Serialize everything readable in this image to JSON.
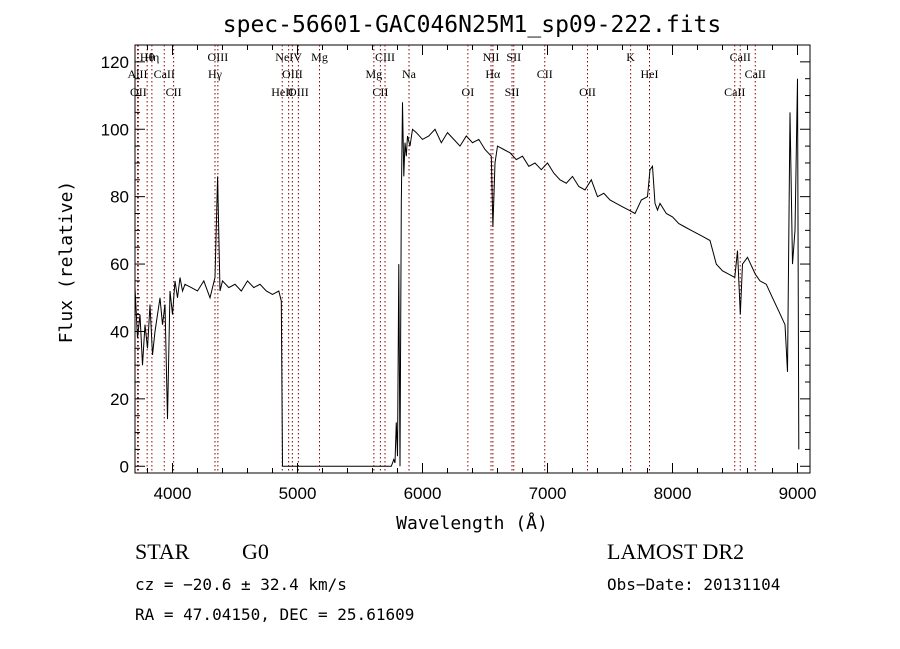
{
  "chart_data": {
    "type": "line",
    "title": "spec-56601-GAC046N25M1_sp09-222.fits",
    "xlabel": "Wavelength (Å)",
    "ylabel": "Flux (relative)",
    "xlim": [
      3700,
      9100
    ],
    "ylim": [
      -2,
      125
    ],
    "x_ticks": [
      4000,
      5000,
      6000,
      7000,
      8000,
      9000
    ],
    "y_ticks": [
      0,
      20,
      40,
      60,
      80,
      100,
      120
    ],
    "grid": false,
    "series": [
      {
        "x": [
          3700,
          3720,
          3740,
          3760,
          3780,
          3800,
          3820,
          3840,
          3860,
          3880,
          3900,
          3920,
          3940,
          3960,
          3980,
          4000,
          4020,
          4040,
          4060,
          4080,
          4100,
          4150,
          4200,
          4250,
          4300,
          4340,
          4361,
          4380,
          4400,
          4450,
          4500,
          4550,
          4600,
          4650,
          4700,
          4750,
          4800,
          4850,
          4870,
          4880,
          4900,
          5000,
          5500,
          5750,
          5770,
          5780,
          5790,
          5800,
          5810,
          5820,
          5830,
          5840,
          5850,
          5860,
          5870,
          5880,
          5900,
          5920,
          5950,
          6000,
          6050,
          6100,
          6150,
          6200,
          6250,
          6300,
          6350,
          6400,
          6450,
          6500,
          6550,
          6563,
          6580,
          6600,
          6650,
          6700,
          6750,
          6800,
          6850,
          6900,
          6950,
          7000,
          7050,
          7100,
          7150,
          7200,
          7250,
          7300,
          7350,
          7400,
          7450,
          7500,
          7550,
          7600,
          7650,
          7700,
          7750,
          7800,
          7820,
          7840,
          7860,
          7880,
          7900,
          7950,
          8000,
          8050,
          8100,
          8150,
          8200,
          8250,
          8300,
          8350,
          8400,
          8450,
          8498,
          8520,
          8542,
          8560,
          8600,
          8662,
          8700,
          8750,
          8800,
          8850,
          8900,
          8920,
          8940,
          8960,
          8980,
          9000,
          9010
        ],
        "y": [
          53,
          38,
          45,
          30,
          42,
          35,
          48,
          33,
          40,
          45,
          50,
          42,
          48,
          14,
          52,
          45,
          55,
          50,
          56,
          52,
          54,
          53,
          52,
          55,
          50,
          56,
          86,
          52,
          55,
          53,
          54,
          52,
          55,
          53,
          54,
          52,
          51,
          52,
          49,
          0,
          0,
          0,
          0,
          0,
          2,
          1,
          13,
          3,
          60,
          0,
          78,
          108,
          86,
          96,
          92,
          98,
          95,
          100,
          99,
          97,
          98,
          100,
          96,
          99,
          97,
          95,
          98,
          96,
          97,
          94,
          92,
          71,
          90,
          95,
          94,
          93,
          91,
          92,
          89,
          90,
          88,
          90,
          87,
          85,
          84,
          86,
          83,
          82,
          85,
          80,
          81,
          79,
          78,
          77,
          76,
          75,
          79,
          80,
          88,
          89,
          78,
          76,
          78,
          75,
          74,
          72,
          71,
          70,
          69,
          68,
          67,
          60,
          58,
          57,
          56,
          64,
          45,
          60,
          62,
          57,
          55,
          54,
          50,
          46,
          42,
          28,
          105,
          60,
          70,
          115,
          5
        ]
      }
    ],
    "lines": [
      {
        "label": "Hθ",
        "wavelength": 3797
      },
      {
        "label": "AlII",
        "wavelength": 3720
      },
      {
        "label": "OII",
        "wavelength": 3727
      },
      {
        "label": "Hη",
        "wavelength": 3835
      },
      {
        "label": "CaII",
        "wavelength": 3934
      },
      {
        "label": "CII",
        "wavelength": 4009
      },
      {
        "label": "OIII",
        "wavelength": 4363
      },
      {
        "label": "Hγ",
        "wavelength": 4340
      },
      {
        "label": "HeII",
        "wavelength": 4878
      },
      {
        "label": "NeIV",
        "wavelength": 4929
      },
      {
        "label": "OIII",
        "wavelength": 4959
      },
      {
        "label": "OIII",
        "wavelength": 5007
      },
      {
        "label": "Mg",
        "wavelength": 5176
      },
      {
        "label": "Mg",
        "wavelength": 5611
      },
      {
        "label": "CII",
        "wavelength": 5663
      },
      {
        "label": "CIII",
        "wavelength": 5700
      },
      {
        "label": "Na",
        "wavelength": 5892
      },
      {
        "label": "OI",
        "wavelength": 6363
      },
      {
        "label": "NII",
        "wavelength": 6548
      },
      {
        "label": "Hα",
        "wavelength": 6563
      },
      {
        "label": "SII",
        "wavelength": 6716
      },
      {
        "label": "SII",
        "wavelength": 6730
      },
      {
        "label": "CII",
        "wavelength": 6978
      },
      {
        "label": "OII",
        "wavelength": 7320
      },
      {
        "label": "K",
        "wavelength": 7665
      },
      {
        "label": "HeI",
        "wavelength": 7816
      },
      {
        "label": "CaII",
        "wavelength": 8498
      },
      {
        "label": "CaII",
        "wavelength": 8542
      },
      {
        "label": "CaII",
        "wavelength": 8662
      }
    ]
  },
  "info": {
    "class": "STAR",
    "subclass": "G0",
    "survey": "LAMOST DR2",
    "cz": "cz = −20.6 ± 32.4 km/s",
    "obs_date": "Obs−Date: 20131104",
    "coords": "RA =  47.04150, DEC =  25.61609"
  }
}
